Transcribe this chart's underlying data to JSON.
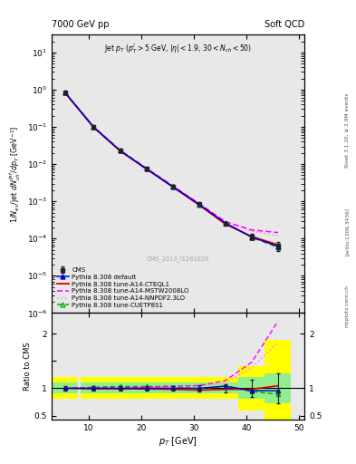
{
  "title_left": "7000 GeV pp",
  "title_right": "Soft QCD",
  "plot_title": "Jet $p_T$ ($p^l_T$$>$5 GeV, $|\\eta|$$<$1.9, 30$<$$N_{ch}$$<$50)",
  "ylabel_main": "$1/N_{ev}$/jet $dN_{ch}^{jet}/dp_T$ [GeV$^{-1}$]",
  "ylabel_ratio": "Ratio to CMS",
  "xlabel": "$p_T$ [GeV]",
  "watermark": "CMS_2013_I1261026",
  "right_label": "Rivet 3.1.10, ≥ 2.9M events",
  "arxiv_label": "[arXiv:1306.3436]",
  "mcplots_label": "mcplots.cern.ch",
  "cms_x": [
    5.5,
    11,
    16,
    21,
    26,
    31,
    36,
    41,
    46
  ],
  "cms_y": [
    0.85,
    0.098,
    0.023,
    0.0075,
    0.0025,
    0.00083,
    0.00025,
    0.000115,
    6.5e-05
  ],
  "cms_yerr": [
    0.04,
    0.004,
    0.0009,
    0.00035,
    0.0001,
    4.5e-05,
    1.8e-05,
    1.8e-05,
    1.8e-05
  ],
  "default_x": [
    5.5,
    11,
    16,
    21,
    26,
    31,
    36,
    41,
    46
  ],
  "default_y": [
    0.85,
    0.098,
    0.023,
    0.0075,
    0.0025,
    0.00083,
    0.00026,
    0.00011,
    6.2e-05
  ],
  "cteql1_x": [
    5.5,
    11,
    16,
    21,
    26,
    31,
    36,
    41,
    46
  ],
  "cteql1_y": [
    0.85,
    0.097,
    0.0228,
    0.0074,
    0.00245,
    0.0008,
    0.000245,
    0.000113,
    6.8e-05
  ],
  "mstw_x": [
    5.5,
    11,
    16,
    21,
    26,
    31,
    36,
    41,
    46
  ],
  "mstw_y": [
    0.85,
    0.099,
    0.0232,
    0.00765,
    0.0026,
    0.00087,
    0.000285,
    0.00017,
    0.000145
  ],
  "nnpdf_x": [
    5.5,
    11,
    16,
    21,
    26,
    31,
    36,
    41,
    46
  ],
  "nnpdf_y": [
    0.85,
    0.099,
    0.0232,
    0.00763,
    0.00258,
    0.00086,
    0.000275,
    0.000158,
    0.00012
  ],
  "cuetp_x": [
    5.5,
    11,
    16,
    21,
    26,
    31,
    36,
    41,
    46
  ],
  "cuetp_y": [
    0.85,
    0.1,
    0.0238,
    0.00775,
    0.00258,
    0.00082,
    0.00026,
    0.000108,
    5.8e-05
  ],
  "ratio_x": [
    5.5,
    11,
    16,
    21,
    26,
    31,
    36,
    41,
    46
  ],
  "ratio_cms_yerr": [
    0.047,
    0.041,
    0.039,
    0.047,
    0.04,
    0.054,
    0.072,
    0.156,
    0.28
  ],
  "ratio_default_y": [
    1.0,
    1.0,
    1.0,
    1.0,
    1.0,
    1.0,
    1.04,
    0.957,
    0.954
  ],
  "ratio_cteql1_y": [
    1.0,
    0.99,
    0.99,
    0.987,
    0.98,
    0.964,
    0.98,
    0.983,
    1.046
  ],
  "ratio_mstw_y": [
    1.0,
    1.01,
    1.009,
    1.02,
    1.04,
    1.048,
    1.14,
    1.478,
    2.23
  ],
  "ratio_nnpdf_y": [
    1.0,
    1.01,
    1.009,
    1.017,
    1.032,
    1.036,
    1.1,
    1.374,
    1.85
  ],
  "ratio_cuetp_y": [
    1.0,
    1.02,
    1.035,
    1.033,
    1.032,
    0.988,
    1.04,
    0.939,
    0.892
  ],
  "band_yellow_lo": [
    0.8,
    0.8,
    0.8,
    0.8,
    0.8,
    0.8,
    0.8,
    0.6,
    0.42
  ],
  "band_yellow_hi": [
    1.2,
    1.2,
    1.2,
    1.2,
    1.2,
    1.2,
    1.2,
    1.4,
    1.88
  ],
  "band_green_lo": [
    0.9,
    0.9,
    0.9,
    0.9,
    0.9,
    0.9,
    0.9,
    0.8,
    0.72
  ],
  "band_green_hi": [
    1.1,
    1.1,
    1.1,
    1.1,
    1.1,
    1.1,
    1.1,
    1.2,
    1.28
  ],
  "color_cms": "#222222",
  "color_default": "#0000cc",
  "color_cteql1": "#dd0000",
  "color_mstw": "#ff00ff",
  "color_nnpdf": "#ff88ff",
  "color_cuetp": "#00aa00",
  "ylim_main": [
    1e-06,
    30.0
  ],
  "ylim_ratio": [
    0.42,
    2.38
  ],
  "xlim": [
    3,
    51
  ],
  "bg_color": "#e8e8e8"
}
